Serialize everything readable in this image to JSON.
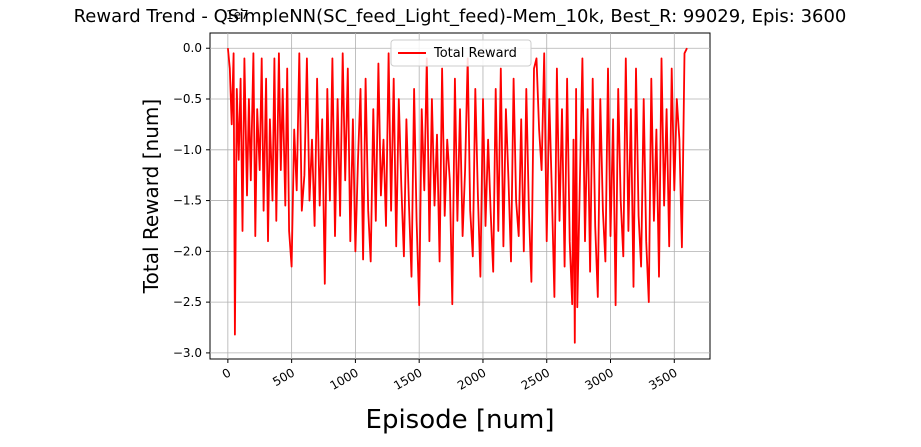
{
  "chart_data": {
    "type": "line",
    "title": "Reward Trend - QSimpleNN(SC_feed_Light_feed)-Mem_10k, Best_R: 99029, Epis: 3600",
    "xlabel": "Episode [num]",
    "ylabel": "Total Reward [num]",
    "y_scale_label": "1e7",
    "xlim": [
      -140,
      3780
    ],
    "ylim": [
      -3.06,
      0.15
    ],
    "x_unit": "episodes",
    "y_unit": "×1e7",
    "x_ticks": [
      0,
      500,
      1000,
      1500,
      2000,
      2500,
      3000,
      3500
    ],
    "x_tick_labels": [
      "0",
      "500",
      "1000",
      "1500",
      "2000",
      "2500",
      "3000",
      "3500"
    ],
    "y_ticks": [
      0.0,
      -0.5,
      -1.0,
      -1.5,
      -2.0,
      -2.5,
      -3.0
    ],
    "y_tick_labels": [
      "0.0",
      "−0.5",
      "−1.0",
      "−1.5",
      "−2.0",
      "−2.5",
      "−3.0"
    ],
    "grid": true,
    "legend_position": "top-center",
    "series": [
      {
        "name": "Total Reward",
        "color": "#ff0000",
        "x": [
          0,
          15,
          30,
          45,
          55,
          70,
          85,
          100,
          115,
          130,
          150,
          165,
          180,
          200,
          215,
          230,
          250,
          265,
          280,
          300,
          315,
          330,
          350,
          365,
          380,
          400,
          415,
          430,
          450,
          465,
          480,
          500,
          520,
          540,
          560,
          580,
          600,
          620,
          640,
          660,
          680,
          700,
          720,
          740,
          760,
          780,
          800,
          820,
          840,
          860,
          880,
          900,
          920,
          940,
          960,
          980,
          1000,
          1020,
          1040,
          1060,
          1080,
          1100,
          1120,
          1140,
          1160,
          1180,
          1200,
          1220,
          1240,
          1260,
          1280,
          1300,
          1320,
          1340,
          1360,
          1380,
          1400,
          1420,
          1440,
          1460,
          1480,
          1500,
          1520,
          1540,
          1560,
          1580,
          1600,
          1620,
          1640,
          1660,
          1680,
          1700,
          1720,
          1740,
          1760,
          1780,
          1800,
          1820,
          1840,
          1860,
          1880,
          1900,
          1920,
          1940,
          1960,
          1980,
          2000,
          2020,
          2040,
          2060,
          2080,
          2100,
          2120,
          2140,
          2160,
          2180,
          2200,
          2220,
          2240,
          2260,
          2280,
          2300,
          2320,
          2340,
          2360,
          2380,
          2400,
          2420,
          2440,
          2460,
          2480,
          2500,
          2520,
          2540,
          2560,
          2580,
          2600,
          2620,
          2640,
          2660,
          2680,
          2700,
          2710,
          2720,
          2730,
          2740,
          2760,
          2780,
          2800,
          2820,
          2840,
          2860,
          2880,
          2900,
          2920,
          2940,
          2960,
          2980,
          3000,
          3020,
          3040,
          3060,
          3080,
          3100,
          3120,
          3140,
          3160,
          3180,
          3200,
          3220,
          3240,
          3260,
          3280,
          3300,
          3320,
          3340,
          3360,
          3380,
          3400,
          3420,
          3440,
          3460,
          3480,
          3500,
          3520,
          3540,
          3560,
          3580,
          3600
        ],
        "y": [
          0.0,
          -0.2,
          -0.75,
          -0.05,
          -2.82,
          -0.4,
          -1.1,
          -0.3,
          -1.8,
          -0.1,
          -1.45,
          -0.5,
          -1.3,
          -0.05,
          -1.85,
          -0.6,
          -1.2,
          -0.1,
          -1.6,
          -0.3,
          -1.9,
          -0.7,
          -1.5,
          -0.1,
          -1.7,
          -0.05,
          -1.2,
          -0.4,
          -1.55,
          -0.2,
          -1.8,
          -2.15,
          -0.8,
          -1.4,
          -0.05,
          -1.6,
          -1.25,
          -0.1,
          -1.5,
          -0.9,
          -1.75,
          -0.3,
          -1.55,
          -0.7,
          -2.32,
          -0.4,
          -1.5,
          -0.1,
          -1.85,
          -0.5,
          -1.65,
          -0.05,
          -1.3,
          -0.2,
          -1.9,
          -0.7,
          -2.0,
          -1.1,
          -0.4,
          -2.08,
          -0.3,
          -1.6,
          -2.1,
          -0.6,
          -1.7,
          -0.15,
          -1.45,
          -0.9,
          -1.75,
          -0.05,
          -1.6,
          -0.3,
          -1.95,
          -0.5,
          -1.35,
          -2.05,
          -0.7,
          -1.55,
          -2.25,
          -0.4,
          -1.7,
          -2.53,
          -0.6,
          -1.4,
          -0.1,
          -1.9,
          -0.5,
          -1.55,
          -0.85,
          -2.1,
          -0.2,
          -1.65,
          -0.9,
          -1.3,
          -2.52,
          -0.3,
          -1.7,
          -0.6,
          -1.85,
          -1.2,
          -0.1,
          -1.6,
          -2.05,
          -0.4,
          -1.45,
          -2.25,
          -0.5,
          -1.75,
          -0.9,
          -1.6,
          -2.2,
          -0.4,
          -1.8,
          -0.2,
          -1.95,
          -0.6,
          -1.3,
          -2.1,
          -0.3,
          -1.5,
          -1.85,
          -0.7,
          -2.0,
          -0.4,
          -1.6,
          -2.3,
          -0.2,
          -0.1,
          -0.8,
          -1.2,
          -0.05,
          -1.9,
          -0.5,
          -1.4,
          -2.45,
          -0.2,
          -1.7,
          -0.6,
          -2.15,
          -0.3,
          -1.9,
          -2.52,
          -0.9,
          -2.9,
          -0.4,
          -2.55,
          -1.3,
          -0.1,
          -1.9,
          -0.6,
          -2.2,
          -0.3,
          -1.75,
          -2.45,
          -0.5,
          -1.6,
          -2.1,
          -0.2,
          -1.85,
          -0.7,
          -2.53,
          -0.4,
          -1.5,
          -2.05,
          -0.1,
          -1.8,
          -0.6,
          -2.35,
          -0.2,
          -1.65,
          -2.15,
          -0.5,
          -1.9,
          -2.5,
          -0.3,
          -1.7,
          -0.8,
          -2.25,
          -0.1,
          -1.55,
          -0.6,
          -1.95,
          -0.2,
          -1.4,
          -0.5,
          -0.9,
          -1.96,
          -0.05,
          0.0
        ]
      }
    ]
  }
}
